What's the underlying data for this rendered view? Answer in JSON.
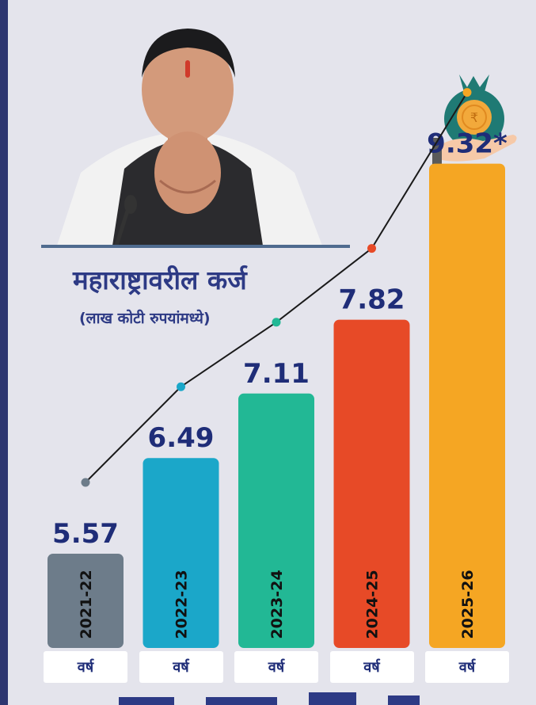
{
  "title": "महाराष्ट्रावरील कर्ज",
  "subtitle": "(लाख कोटी रुपयांमध्ये)",
  "colors": {
    "background": "#e4e4ec",
    "text_primary": "#2d3a85",
    "trend_line": "#1a1a1a"
  },
  "chart_data": {
    "type": "bar",
    "categories": [
      "2021-22",
      "2022-23",
      "2023-24",
      "2024-25",
      "2025-26"
    ],
    "values": [
      5.57,
      6.49,
      7.11,
      7.82,
      9.32
    ],
    "value_labels": [
      "5.57",
      "6.49",
      "7.11",
      "7.82",
      "9.32*"
    ],
    "bar_colors": [
      "#6d7c8a",
      "#1ba7c9",
      "#22b895",
      "#e74a27",
      "#f5a623"
    ],
    "category_suffix": "वर्ष",
    "trend_line": true,
    "grid": false,
    "legend": "none"
  }
}
